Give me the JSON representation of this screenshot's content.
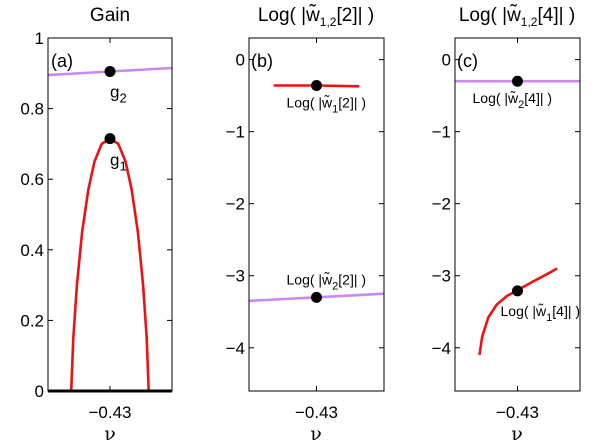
{
  "chart_data": [
    {
      "type": "line",
      "panel_label": "(a)",
      "title": "Gain",
      "xlabel": "ν",
      "xlim": [
        -0.49,
        -0.37
      ],
      "ylim": [
        0,
        1
      ],
      "x_ticks": [
        {
          "value": -0.43,
          "label": "−0.43"
        }
      ],
      "y_ticks": [
        {
          "value": 0,
          "label": "0"
        },
        {
          "value": 0.2,
          "label": "0.2"
        },
        {
          "value": 0.4,
          "label": "0.4"
        },
        {
          "value": 0.6,
          "label": "0.6"
        },
        {
          "value": 0.8,
          "label": "0.8"
        },
        {
          "value": 1,
          "label": "1"
        }
      ],
      "series": [
        {
          "color": "#cc88ee",
          "points": [
            [
              -0.49,
              0.895
            ],
            [
              -0.43,
              0.905
            ],
            [
              -0.37,
              0.915
            ]
          ]
        },
        {
          "color": "#ee1111",
          "points": [
            [
              -0.4675,
              0.0
            ],
            [
              -0.4655,
              0.15
            ],
            [
              -0.462,
              0.3
            ],
            [
              -0.457,
              0.45
            ],
            [
              -0.451,
              0.57
            ],
            [
              -0.445,
              0.65
            ],
            [
              -0.438,
              0.7
            ],
            [
              -0.43,
              0.715
            ],
            [
              -0.422,
              0.7
            ],
            [
              -0.415,
              0.65
            ],
            [
              -0.409,
              0.57
            ],
            [
              -0.403,
              0.45
            ],
            [
              -0.398,
              0.3
            ],
            [
              -0.3945,
              0.15
            ],
            [
              -0.3925,
              0.0
            ]
          ]
        },
        {
          "color": "#000000",
          "points": [
            [
              -0.49,
              0.0
            ],
            [
              -0.37,
              0.0
            ]
          ]
        }
      ],
      "markers": [
        {
          "x": -0.43,
          "y": 0.905,
          "label": "g",
          "sub": "2"
        },
        {
          "x": -0.43,
          "y": 0.715,
          "label": "g",
          "sub": "1"
        }
      ]
    },
    {
      "type": "line",
      "panel_label": "(b)",
      "title": "Log( |w̃",
      "title_sub": "1,2",
      "title_tail": "[2]| )",
      "xlabel": "ν",
      "xlim": [
        -0.49,
        -0.37
      ],
      "ylim": [
        -4.6,
        0.3
      ],
      "x_ticks": [
        {
          "value": -0.43,
          "label": "−0.43"
        }
      ],
      "y_ticks": [
        {
          "value": 0,
          "label": "0"
        },
        {
          "value": -1,
          "label": "−1"
        },
        {
          "value": -2,
          "label": "−2"
        },
        {
          "value": -3,
          "label": "−3"
        },
        {
          "value": -4,
          "label": "−4"
        }
      ],
      "series": [
        {
          "color": "#ee1111",
          "points": [
            [
              -0.468,
              -0.36
            ],
            [
              -0.43,
              -0.36
            ],
            [
              -0.392,
              -0.37
            ]
          ]
        },
        {
          "color": "#cc88ee",
          "points": [
            [
              -0.49,
              -3.35
            ],
            [
              -0.43,
              -3.3
            ],
            [
              -0.37,
              -3.25
            ]
          ]
        }
      ],
      "markers": [
        {
          "x": -0.43,
          "y": -0.36,
          "label": "Log( |w̃",
          "sub": "1",
          "tail": "[2]| )"
        },
        {
          "x": -0.43,
          "y": -3.3,
          "label": "Log( |w̃",
          "sub": "2",
          "tail": "[2]| )"
        }
      ]
    },
    {
      "type": "line",
      "panel_label": "(c)",
      "title": "Log( |w̃",
      "title_sub": "1,2",
      "title_tail": "[4]| )",
      "xlabel": "ν",
      "xlim": [
        -0.49,
        -0.37
      ],
      "ylim": [
        -4.6,
        0.3
      ],
      "x_ticks": [
        {
          "value": -0.43,
          "label": "−0.43"
        }
      ],
      "y_ticks": [
        {
          "value": 0,
          "label": "0"
        },
        {
          "value": -1,
          "label": "−1"
        },
        {
          "value": -2,
          "label": "−2"
        },
        {
          "value": -3,
          "label": "−3"
        },
        {
          "value": -4,
          "label": "−4"
        }
      ],
      "series": [
        {
          "color": "#cc88ee",
          "points": [
            [
              -0.49,
              -0.3
            ],
            [
              -0.43,
              -0.3
            ],
            [
              -0.37,
              -0.3
            ]
          ]
        },
        {
          "color": "#ee1111",
          "points": [
            [
              -0.4665,
              -4.1
            ],
            [
              -0.464,
              -3.85
            ],
            [
              -0.458,
              -3.58
            ],
            [
              -0.45,
              -3.4
            ],
            [
              -0.44,
              -3.28
            ],
            [
              -0.43,
              -3.2
            ],
            [
              -0.415,
              -3.08
            ],
            [
              -0.402,
              -2.98
            ],
            [
              -0.392,
              -2.9
            ]
          ]
        }
      ],
      "markers": [
        {
          "x": -0.43,
          "y": -0.3,
          "label": "Log( |w̃",
          "sub": "2",
          "tail": "[4]| )"
        },
        {
          "x": -0.43,
          "y": -3.21,
          "label": "Log( |w̃",
          "sub": "1",
          "tail": "[4]| )"
        }
      ]
    }
  ]
}
